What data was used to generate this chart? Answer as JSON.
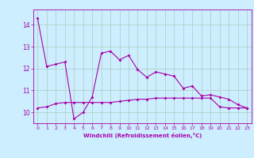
{
  "xlabel": "Windchill (Refroidissement éolien,°C)",
  "bg_color": "#cceeff",
  "line_color": "#aa00aa",
  "grid_color": "#aaccbb",
  "xlim": [
    -0.5,
    23.5
  ],
  "ylim": [
    9.5,
    14.7
  ],
  "yticks": [
    10,
    11,
    12,
    13,
    14
  ],
  "xticks": [
    0,
    1,
    2,
    3,
    4,
    5,
    6,
    7,
    8,
    9,
    10,
    11,
    12,
    13,
    14,
    15,
    16,
    17,
    18,
    19,
    20,
    21,
    22,
    23
  ],
  "series1_x": [
    0,
    1,
    2,
    3,
    4,
    5,
    6,
    7,
    8,
    9,
    10,
    11,
    12,
    13,
    14,
    15,
    16,
    17,
    18,
    19,
    20,
    21,
    22,
    23
  ],
  "series1_y": [
    14.3,
    12.1,
    12.2,
    12.3,
    9.7,
    10.0,
    10.7,
    12.7,
    12.8,
    12.4,
    12.6,
    11.95,
    11.6,
    11.85,
    11.75,
    11.65,
    11.1,
    11.2,
    10.75,
    10.8,
    10.7,
    10.6,
    10.35,
    10.2
  ],
  "series2_x": [
    0,
    1,
    2,
    3,
    4,
    5,
    6,
    7,
    8,
    9,
    10,
    11,
    12,
    13,
    14,
    15,
    16,
    17,
    18,
    19,
    20,
    21,
    22,
    23
  ],
  "series2_y": [
    10.2,
    10.25,
    10.4,
    10.45,
    10.45,
    10.45,
    10.45,
    10.45,
    10.45,
    10.5,
    10.55,
    10.6,
    10.6,
    10.65,
    10.65,
    10.65,
    10.65,
    10.65,
    10.65,
    10.65,
    10.25,
    10.2,
    10.2,
    10.2
  ]
}
